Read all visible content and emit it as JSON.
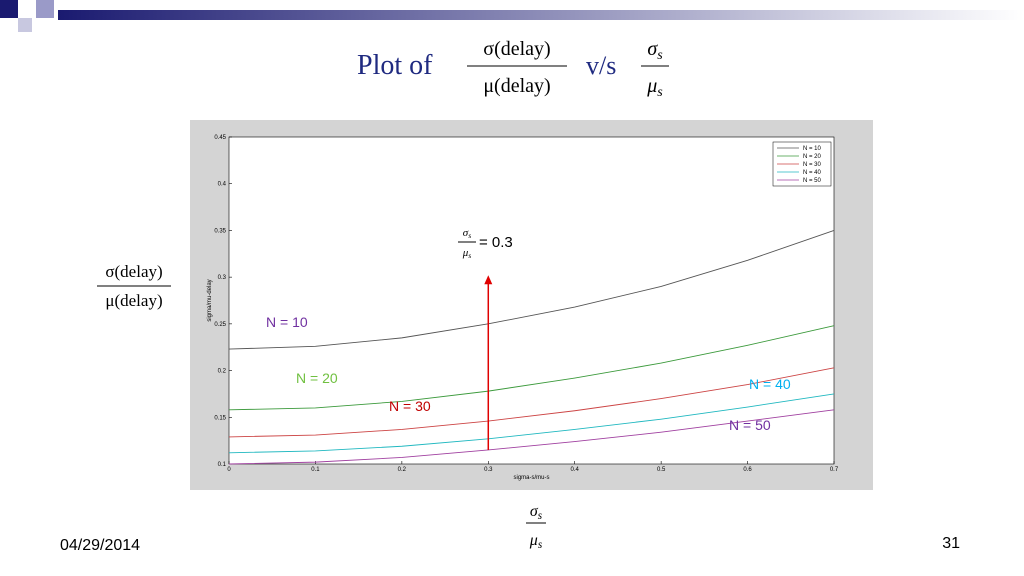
{
  "title": {
    "prefix": "Plot of",
    "fraction": {
      "num": "σ(delay)",
      "den": "μ(delay)"
    },
    "vs": "v/s",
    "fraction2": {
      "num": "σ",
      "num_sub": "s",
      "den": "μ",
      "den_sub": "s"
    }
  },
  "y_label": {
    "num": "σ(delay)",
    "den": "μ(delay)"
  },
  "x_label": {
    "num": "σ",
    "num_sub": "s",
    "den": "μ",
    "den_sub": "s"
  },
  "footer": {
    "date": "04/29/2014",
    "page": "31"
  },
  "chart_data": {
    "type": "line",
    "x": [
      0,
      0.1,
      0.2,
      0.3,
      0.4,
      0.5,
      0.6,
      0.7
    ],
    "xlim": [
      0,
      0.7
    ],
    "ylim": [
      0.1,
      0.45
    ],
    "xticks": [
      0,
      0.1,
      0.2,
      0.3,
      0.4,
      0.5,
      0.6,
      0.7
    ],
    "yticks": [
      0.1,
      0.15,
      0.2,
      0.25,
      0.3,
      0.35,
      0.4,
      0.45
    ],
    "xlabel": "sigma-s/mu-s",
    "ylabel": "sigma/mu-delay",
    "legend": "upper right",
    "series": [
      {
        "name": "N = 10",
        "color": "#555555",
        "values": [
          0.223,
          0.226,
          0.235,
          0.25,
          0.268,
          0.29,
          0.318,
          0.35
        ]
      },
      {
        "name": "N = 20",
        "color": "#3c9a3c",
        "values": [
          0.158,
          0.16,
          0.167,
          0.178,
          0.192,
          0.208,
          0.227,
          0.248
        ]
      },
      {
        "name": "N = 30",
        "color": "#cc4444",
        "values": [
          0.129,
          0.131,
          0.137,
          0.146,
          0.157,
          0.17,
          0.185,
          0.203
        ]
      },
      {
        "name": "N = 40",
        "color": "#20b8c0",
        "values": [
          0.112,
          0.114,
          0.119,
          0.127,
          0.137,
          0.148,
          0.161,
          0.175
        ]
      },
      {
        "name": "N = 50",
        "color": "#a040a0",
        "values": [
          0.1,
          0.102,
          0.107,
          0.115,
          0.124,
          0.134,
          0.146,
          0.158
        ]
      }
    ],
    "annotations": [
      {
        "text": "N = 10",
        "color": "#7030a0"
      },
      {
        "text": "N = 20",
        "color": "#70c040"
      },
      {
        "text": "N = 30",
        "color": "#c00000"
      },
      {
        "text": "N = 40",
        "color": "#00b0f0"
      },
      {
        "text": "N = 50",
        "color": "#7030a0"
      }
    ],
    "marker": {
      "x": 0.3,
      "y_from": 0.115,
      "y_to": 0.302,
      "color": "#e00000",
      "label": {
        "num": "σ",
        "num_sub": "s",
        "den": "μ",
        "den_sub": "s",
        "text": "= 0.3"
      }
    }
  }
}
